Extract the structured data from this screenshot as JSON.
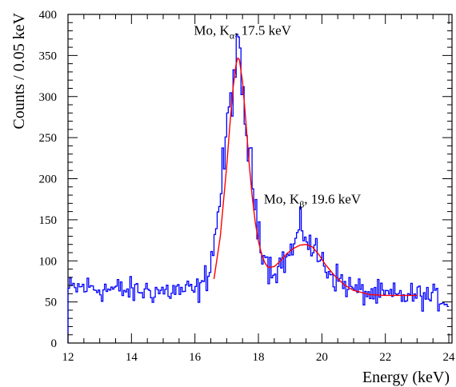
{
  "chart_data": {
    "type": "line",
    "title": "",
    "xlabel": "Energy (keV)",
    "ylabel": "Counts / 0.05 keV",
    "xlim": [
      12,
      24.1
    ],
    "ylim": [
      0,
      400
    ],
    "x_ticks": [
      12,
      14,
      16,
      18,
      20,
      22,
      24
    ],
    "y_ticks": [
      0,
      50,
      100,
      150,
      200,
      250,
      300,
      350,
      400
    ],
    "grid": false,
    "legend": "none",
    "annotations": [
      {
        "main": "Mo, K",
        "sub": "α",
        "rest": ", 17.5 keV",
        "x": 17.5,
        "y": 375
      },
      {
        "main": "Mo, K",
        "sub": "β",
        "rest": ", 19.6 keV",
        "x": 19.7,
        "y": 170
      }
    ],
    "series": [
      {
        "style": "histogram",
        "color": "#0000ff",
        "x": [
          12.0,
          12.5,
          13.0,
          13.5,
          14.0,
          14.5,
          15.0,
          15.5,
          16.0,
          16.2,
          16.4,
          16.6,
          16.8,
          17.0,
          17.1,
          17.2,
          17.3,
          17.4,
          17.5,
          17.6,
          17.7,
          17.8,
          17.9,
          18.0,
          18.1,
          18.2,
          18.3,
          18.4,
          18.6,
          18.8,
          19.0,
          19.2,
          19.4,
          19.5,
          19.6,
          19.8,
          20.0,
          20.3,
          20.6,
          21.0,
          21.5,
          22.0,
          22.5,
          23.0,
          23.5,
          24.0
        ],
        "y": [
          65,
          68,
          66,
          65,
          63,
          64,
          63,
          64,
          63,
          66,
          85,
          120,
          180,
          250,
          290,
          320,
          345,
          340,
          300,
          270,
          230,
          200,
          170,
          145,
          125,
          108,
          96,
          90,
          92,
          100,
          108,
          125,
          140,
          135,
          120,
          110,
          100,
          85,
          75,
          65,
          60,
          58,
          57,
          58,
          55,
          52
        ]
      },
      {
        "style": "smooth",
        "color": "#ff0000",
        "x": [
          16.6,
          16.8,
          17.0,
          17.1,
          17.2,
          17.3,
          17.35,
          17.4,
          17.5,
          17.6,
          17.7,
          17.8,
          17.9,
          18.0,
          18.1,
          18.2,
          18.3,
          18.5,
          18.7,
          18.9,
          19.1,
          19.3,
          19.5,
          19.7,
          19.9,
          20.1,
          20.4,
          20.7,
          21.0,
          21.5,
          22.0,
          22.5,
          23.0
        ],
        "y": [
          78,
          130,
          215,
          265,
          310,
          340,
          347,
          345,
          318,
          272,
          222,
          180,
          147,
          124,
          108,
          98,
          92,
          93,
          100,
          109,
          115,
          119,
          120,
          117,
          108,
          96,
          82,
          71,
          64,
          59,
          58,
          58,
          58
        ]
      }
    ]
  }
}
